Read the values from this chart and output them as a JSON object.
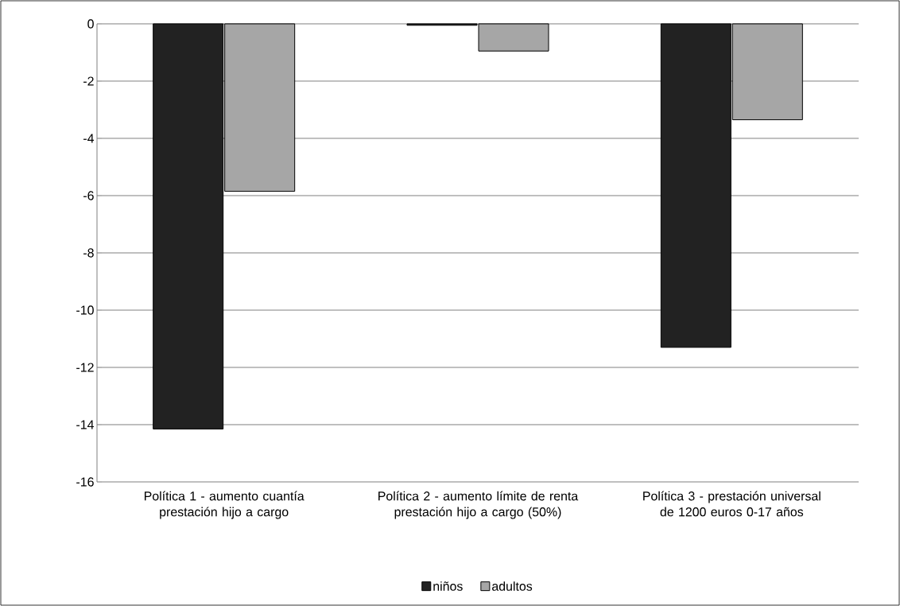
{
  "chart_data": {
    "type": "bar",
    "categories": [
      "Política 1 - aumento cuantía prestación hijo a cargo",
      "Política 2 - aumento límite de renta prestación hijo a cargo (50%)",
      "Política 3 - prestación universal de 1200 euros 0-17 años"
    ],
    "series": [
      {
        "name": "niños",
        "color": "#222222",
        "values": [
          -14.15,
          -0.05,
          -11.3
        ]
      },
      {
        "name": "adultos",
        "color": "#a6a6a6",
        "values": [
          -5.85,
          -0.95,
          -3.35
        ]
      }
    ],
    "ylim": [
      -16,
      0
    ],
    "yticks": [
      0,
      -2,
      -4,
      -6,
      -8,
      -10,
      -12,
      -14,
      -16
    ],
    "grid": "y",
    "legend": "bottom"
  }
}
